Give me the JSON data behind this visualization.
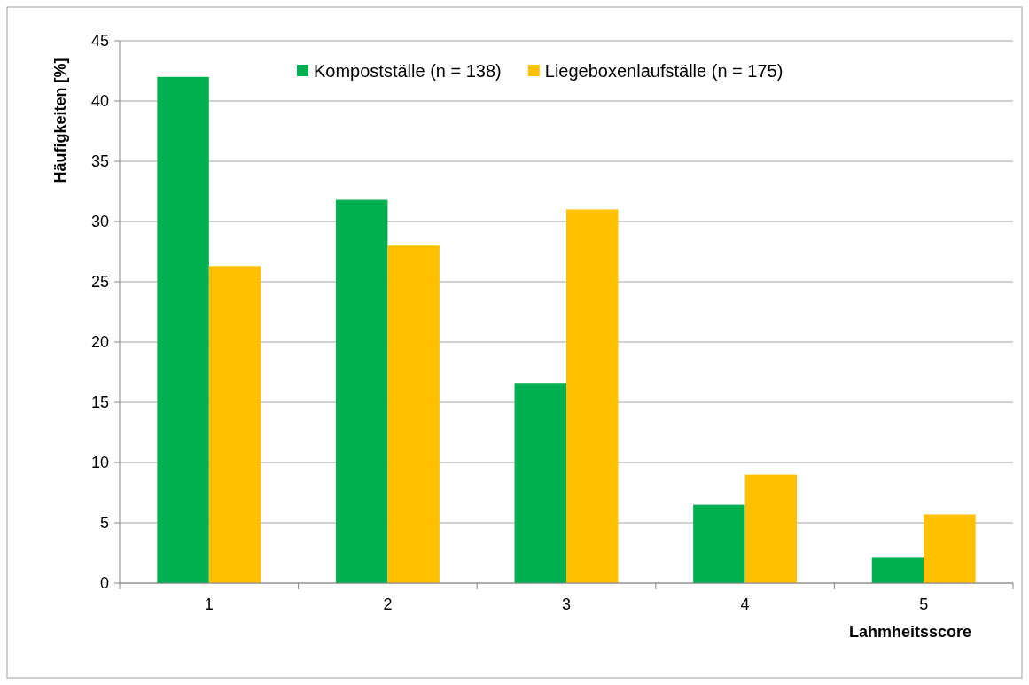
{
  "chart_data": {
    "type": "bar",
    "xlabel": "Lahmheitsscore",
    "ylabel": "Häufigkeiten [%]",
    "categories": [
      "1",
      "2",
      "3",
      "4",
      "5"
    ],
    "series": [
      {
        "name": "Kompostställe (n = 138)",
        "color": "#00b050",
        "values": [
          42,
          31.8,
          16.6,
          6.5,
          2.1
        ]
      },
      {
        "name": "Liegeboxenlaufställe (n = 175)",
        "color": "#ffc000",
        "values": [
          26.3,
          28,
          31,
          9,
          5.7
        ]
      }
    ],
    "ylim": [
      0,
      45
    ],
    "yticks": [
      0,
      5,
      10,
      15,
      20,
      25,
      30,
      35,
      40,
      45
    ],
    "grid": "y",
    "legend": "top"
  }
}
